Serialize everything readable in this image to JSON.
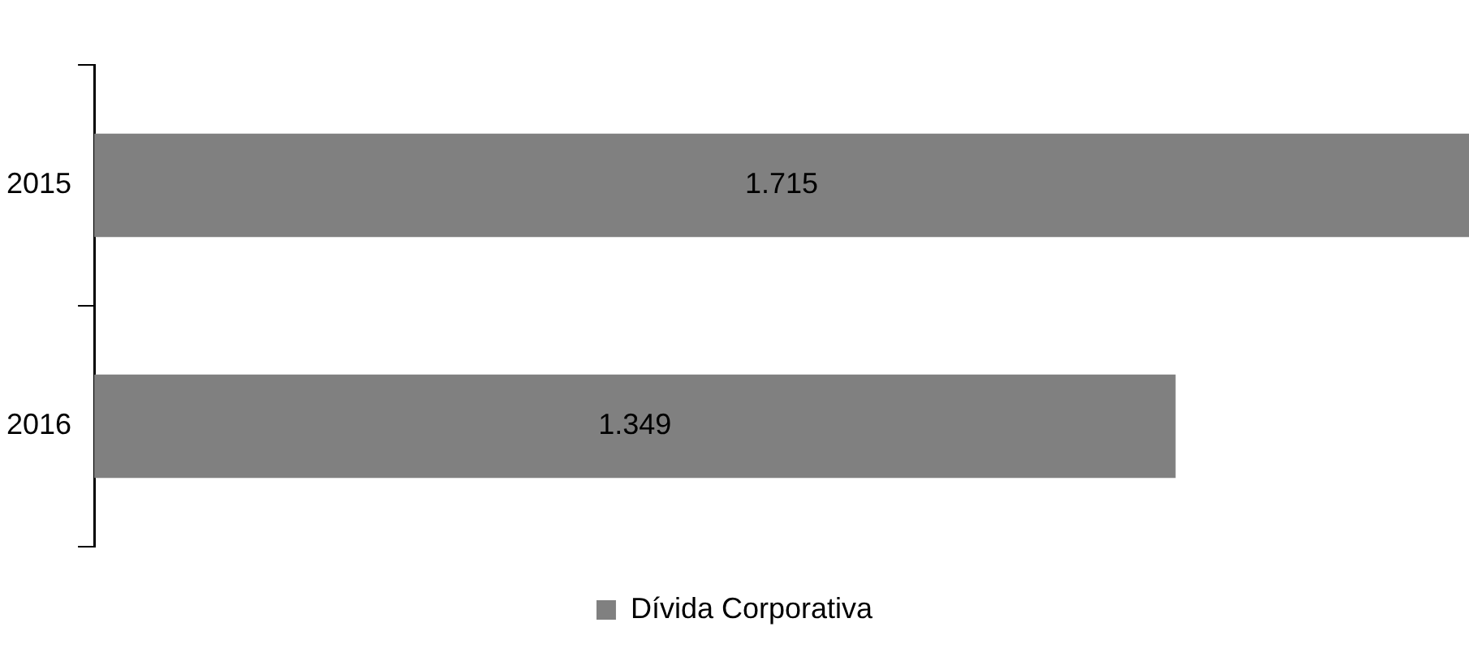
{
  "chart_data": {
    "type": "bar",
    "orientation": "horizontal",
    "categories": [
      "2015",
      "2016"
    ],
    "series": [
      {
        "name": "Dívida Corporativa",
        "color": "#808080",
        "values": [
          1715,
          1349
        ],
        "value_labels": [
          "1.715",
          "1.349"
        ]
      }
    ],
    "legend": "bottom"
  }
}
